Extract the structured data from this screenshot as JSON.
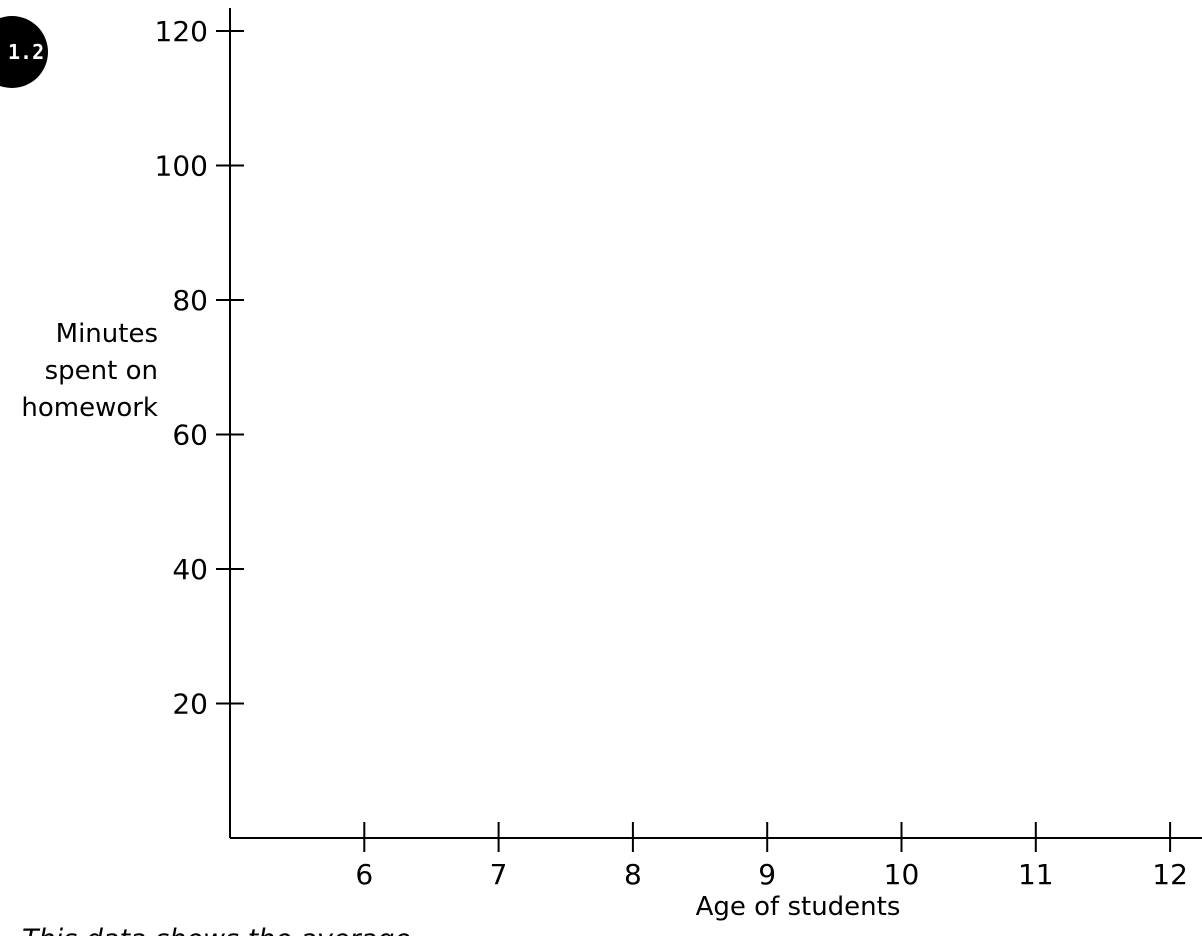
{
  "badge": {
    "label": "1.2"
  },
  "chart_data": {
    "type": "scatter",
    "title": "",
    "xlabel": "Age of students",
    "ylabel": "Minutes spent on homework",
    "ylabel_lines": [
      "Minutes",
      "spent on",
      "homework"
    ],
    "xlim": [
      5,
      12
    ],
    "ylim": [
      0,
      120
    ],
    "x_ticks": [
      6,
      7,
      8,
      9,
      10,
      11,
      12
    ],
    "y_ticks": [
      20,
      40,
      60,
      80,
      100,
      120
    ],
    "grid": false,
    "series": []
  },
  "caption": "This data shows the average"
}
